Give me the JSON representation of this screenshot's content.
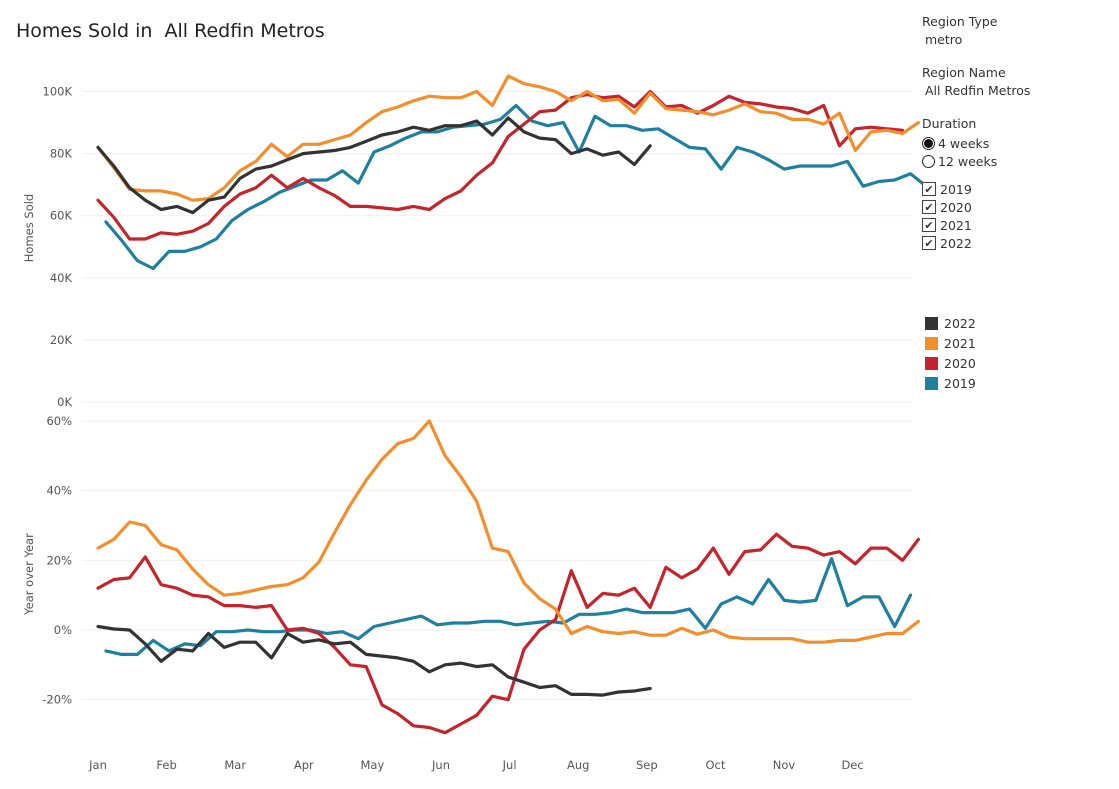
{
  "title": "Homes Sold in  All Redfin Metros",
  "filters": {
    "region_type_label": "Region Type",
    "region_type_value": "metro",
    "region_name_label": "Region Name",
    "region_name_value": "All Redfin Metros",
    "duration_label": "Duration",
    "duration_options": [
      "4 weeks",
      "12 weeks"
    ],
    "duration_selected": "4 weeks",
    "years": [
      "2019",
      "2020",
      "2021",
      "2022"
    ],
    "years_checked": [
      true,
      true,
      true,
      true
    ]
  },
  "legend": [
    {
      "label": "2022",
      "color": "#333333"
    },
    {
      "label": "2021",
      "color": "#f28e2b"
    },
    {
      "label": "2020",
      "color": "#c4242b"
    },
    {
      "label": "2019",
      "color": "#1f7f9e"
    }
  ],
  "chart_data": [
    {
      "type": "line",
      "title": "Homes Sold in  All Redfin Metros",
      "ylabel": "Homes Sold",
      "xlabel": "",
      "ylim": [
        0,
        110000
      ],
      "yticks": [
        0,
        20000,
        40000,
        60000,
        80000,
        100000
      ],
      "ytick_labels": [
        "0K",
        "20K",
        "40K",
        "60K",
        "80K",
        "100K"
      ],
      "xticks": [
        "Jan",
        "Feb",
        "Mar",
        "Apr",
        "May",
        "Jun",
        "Jul",
        "Aug",
        "Sep",
        "Oct",
        "Nov",
        "Dec"
      ],
      "x_units": "week of year",
      "grid": true,
      "series": [
        {
          "name": "2022",
          "color": "#333333",
          "x_start": 0,
          "values": [
            82000,
            76000,
            69000,
            65000,
            62000,
            63000,
            61000,
            65000,
            66000,
            72000,
            75000,
            76000,
            78000,
            80000,
            80500,
            81000,
            82000,
            84000,
            86000,
            87000,
            88500,
            87500,
            89000,
            89000,
            90500,
            86000,
            91500,
            87000,
            85000,
            84500,
            80000,
            81500,
            79500,
            80500,
            76500,
            82500
          ]
        },
        {
          "name": "2021",
          "color": "#f28e2b",
          "x_start": 0,
          "values": [
            82000,
            75500,
            68500,
            68000,
            68000,
            67000,
            65000,
            65500,
            69000,
            74500,
            77500,
            83000,
            79000,
            83000,
            83000,
            84500,
            86000,
            90000,
            93500,
            95000,
            97000,
            98500,
            98000,
            98000,
            100000,
            95500,
            105000,
            102500,
            101500,
            100000,
            97000,
            100000,
            97000,
            97500,
            93000,
            99500,
            94500,
            94000,
            93500,
            92500,
            94000,
            96000,
            93500,
            93000,
            91000,
            91000,
            89500,
            93000,
            81000,
            87000,
            87500,
            86500,
            90000
          ]
        },
        {
          "name": "2020",
          "color": "#c4242b",
          "x_start": 0,
          "values": [
            65000,
            59500,
            52500,
            52500,
            54500,
            54000,
            55000,
            57500,
            63000,
            67000,
            69000,
            73000,
            69000,
            72000,
            69000,
            66500,
            63000,
            63000,
            62500,
            62000,
            63000,
            62000,
            65500,
            68000,
            73000,
            77000,
            85500,
            89500,
            93500,
            94000,
            98000,
            99000,
            98000,
            98500,
            95000,
            100000,
            95000,
            95500,
            93000,
            95500,
            98500,
            96500,
            96000,
            95000,
            94500,
            93000,
            95500,
            82500,
            88000,
            88500,
            88000,
            87500
          ]
        },
        {
          "name": "2019",
          "color": "#1f7f9e",
          "x_start": 0.5,
          "values": [
            58000,
            52000,
            45500,
            43000,
            48500,
            48500,
            50000,
            52500,
            58500,
            62000,
            64500,
            67500,
            69500,
            71500,
            71500,
            74500,
            70500,
            80500,
            82500,
            85000,
            87000,
            87000,
            88500,
            89000,
            89500,
            91000,
            95500,
            90500,
            89000,
            90000,
            80500,
            92000,
            89000,
            89000,
            87500,
            88000,
            85000,
            82000,
            81500,
            75000,
            82000,
            80500,
            78000,
            75000,
            76000,
            76000,
            76000,
            77500,
            69500,
            71000,
            71500,
            73500,
            69500
          ]
        }
      ]
    },
    {
      "type": "line",
      "title": "",
      "ylabel": "Year over Year",
      "xlabel": "",
      "ylim": [
        -32,
        64
      ],
      "yticks": [
        -20,
        0,
        20,
        40,
        60
      ],
      "ytick_labels": [
        "-20%",
        "0%",
        "20%",
        "40%",
        "60%"
      ],
      "xticks": [
        "Jan",
        "Feb",
        "Mar",
        "Apr",
        "May",
        "Jun",
        "Jul",
        "Aug",
        "Sep",
        "Oct",
        "Nov",
        "Dec"
      ],
      "x_units": "week of year",
      "grid": true,
      "series": [
        {
          "name": "2022",
          "color": "#333333",
          "x_start": 0,
          "values": [
            1,
            0.3,
            0,
            -4,
            -9,
            -5.5,
            -6,
            -1,
            -5,
            -3.5,
            -3.5,
            -8,
            -1,
            -3.5,
            -2.8,
            -4,
            -3.5,
            -7,
            -7.5,
            -8,
            -9,
            -12,
            -10,
            -9.5,
            -10.5,
            -10,
            -13.5,
            -15,
            -16.5,
            -16,
            -18.5,
            -18.5,
            -18.7,
            -17.8,
            -17.5,
            -16.8
          ]
        },
        {
          "name": "2021",
          "color": "#f28e2b",
          "x_start": 0,
          "values": [
            23.5,
            26,
            31,
            30,
            24.5,
            23,
            17.5,
            13,
            10,
            10.5,
            11.5,
            12.5,
            13,
            15,
            19.5,
            28,
            36,
            43,
            49,
            53.5,
            55,
            60,
            50,
            44,
            37,
            23.5,
            22.5,
            13.5,
            9,
            6,
            -1,
            1,
            -0.5,
            -1,
            -0.5,
            -1.5,
            -1.5,
            0.5,
            -1.2,
            0,
            -2,
            -2.5,
            -2.5,
            -2.5,
            -2.5,
            -3.5,
            -3.5,
            -3,
            -3,
            -2,
            -1,
            -1,
            2.5
          ]
        },
        {
          "name": "2020",
          "color": "#c4242b",
          "x_start": 0,
          "values": [
            12,
            14.5,
            15,
            21,
            13,
            12,
            10,
            9.5,
            7,
            7,
            6.5,
            7,
            0,
            0.5,
            -1,
            -5,
            -10,
            -10.5,
            -21.5,
            -24,
            -27.5,
            -28,
            -29.5,
            -27,
            -24.5,
            -19,
            -20,
            -5.5,
            0,
            3,
            17,
            6.5,
            10.5,
            10,
            12,
            6.5,
            18,
            15,
            17.5,
            23.5,
            16,
            22.5,
            23,
            27.5,
            24,
            23.5,
            21.5,
            22.5,
            19,
            23.5,
            23.5,
            20,
            26
          ]
        },
        {
          "name": "2019",
          "color": "#1f7f9e",
          "x_start": 0.5,
          "values": [
            -6,
            -7,
            -7,
            -3,
            -6,
            -4,
            -4.5,
            -0.5,
            -0.5,
            0,
            -0.5,
            -0.5,
            0,
            0,
            -1,
            -0.5,
            -2.5,
            1,
            2,
            3,
            4,
            1.5,
            2,
            2,
            2.5,
            2.5,
            1.5,
            2,
            2.5,
            2,
            4.5,
            4.5,
            5,
            6,
            5,
            5,
            5,
            6,
            0.5,
            7.5,
            9.5,
            7.5,
            14.5,
            8.5,
            8,
            8.5,
            20.5,
            7,
            9.5,
            9.5,
            1,
            10
          ]
        }
      ]
    }
  ]
}
